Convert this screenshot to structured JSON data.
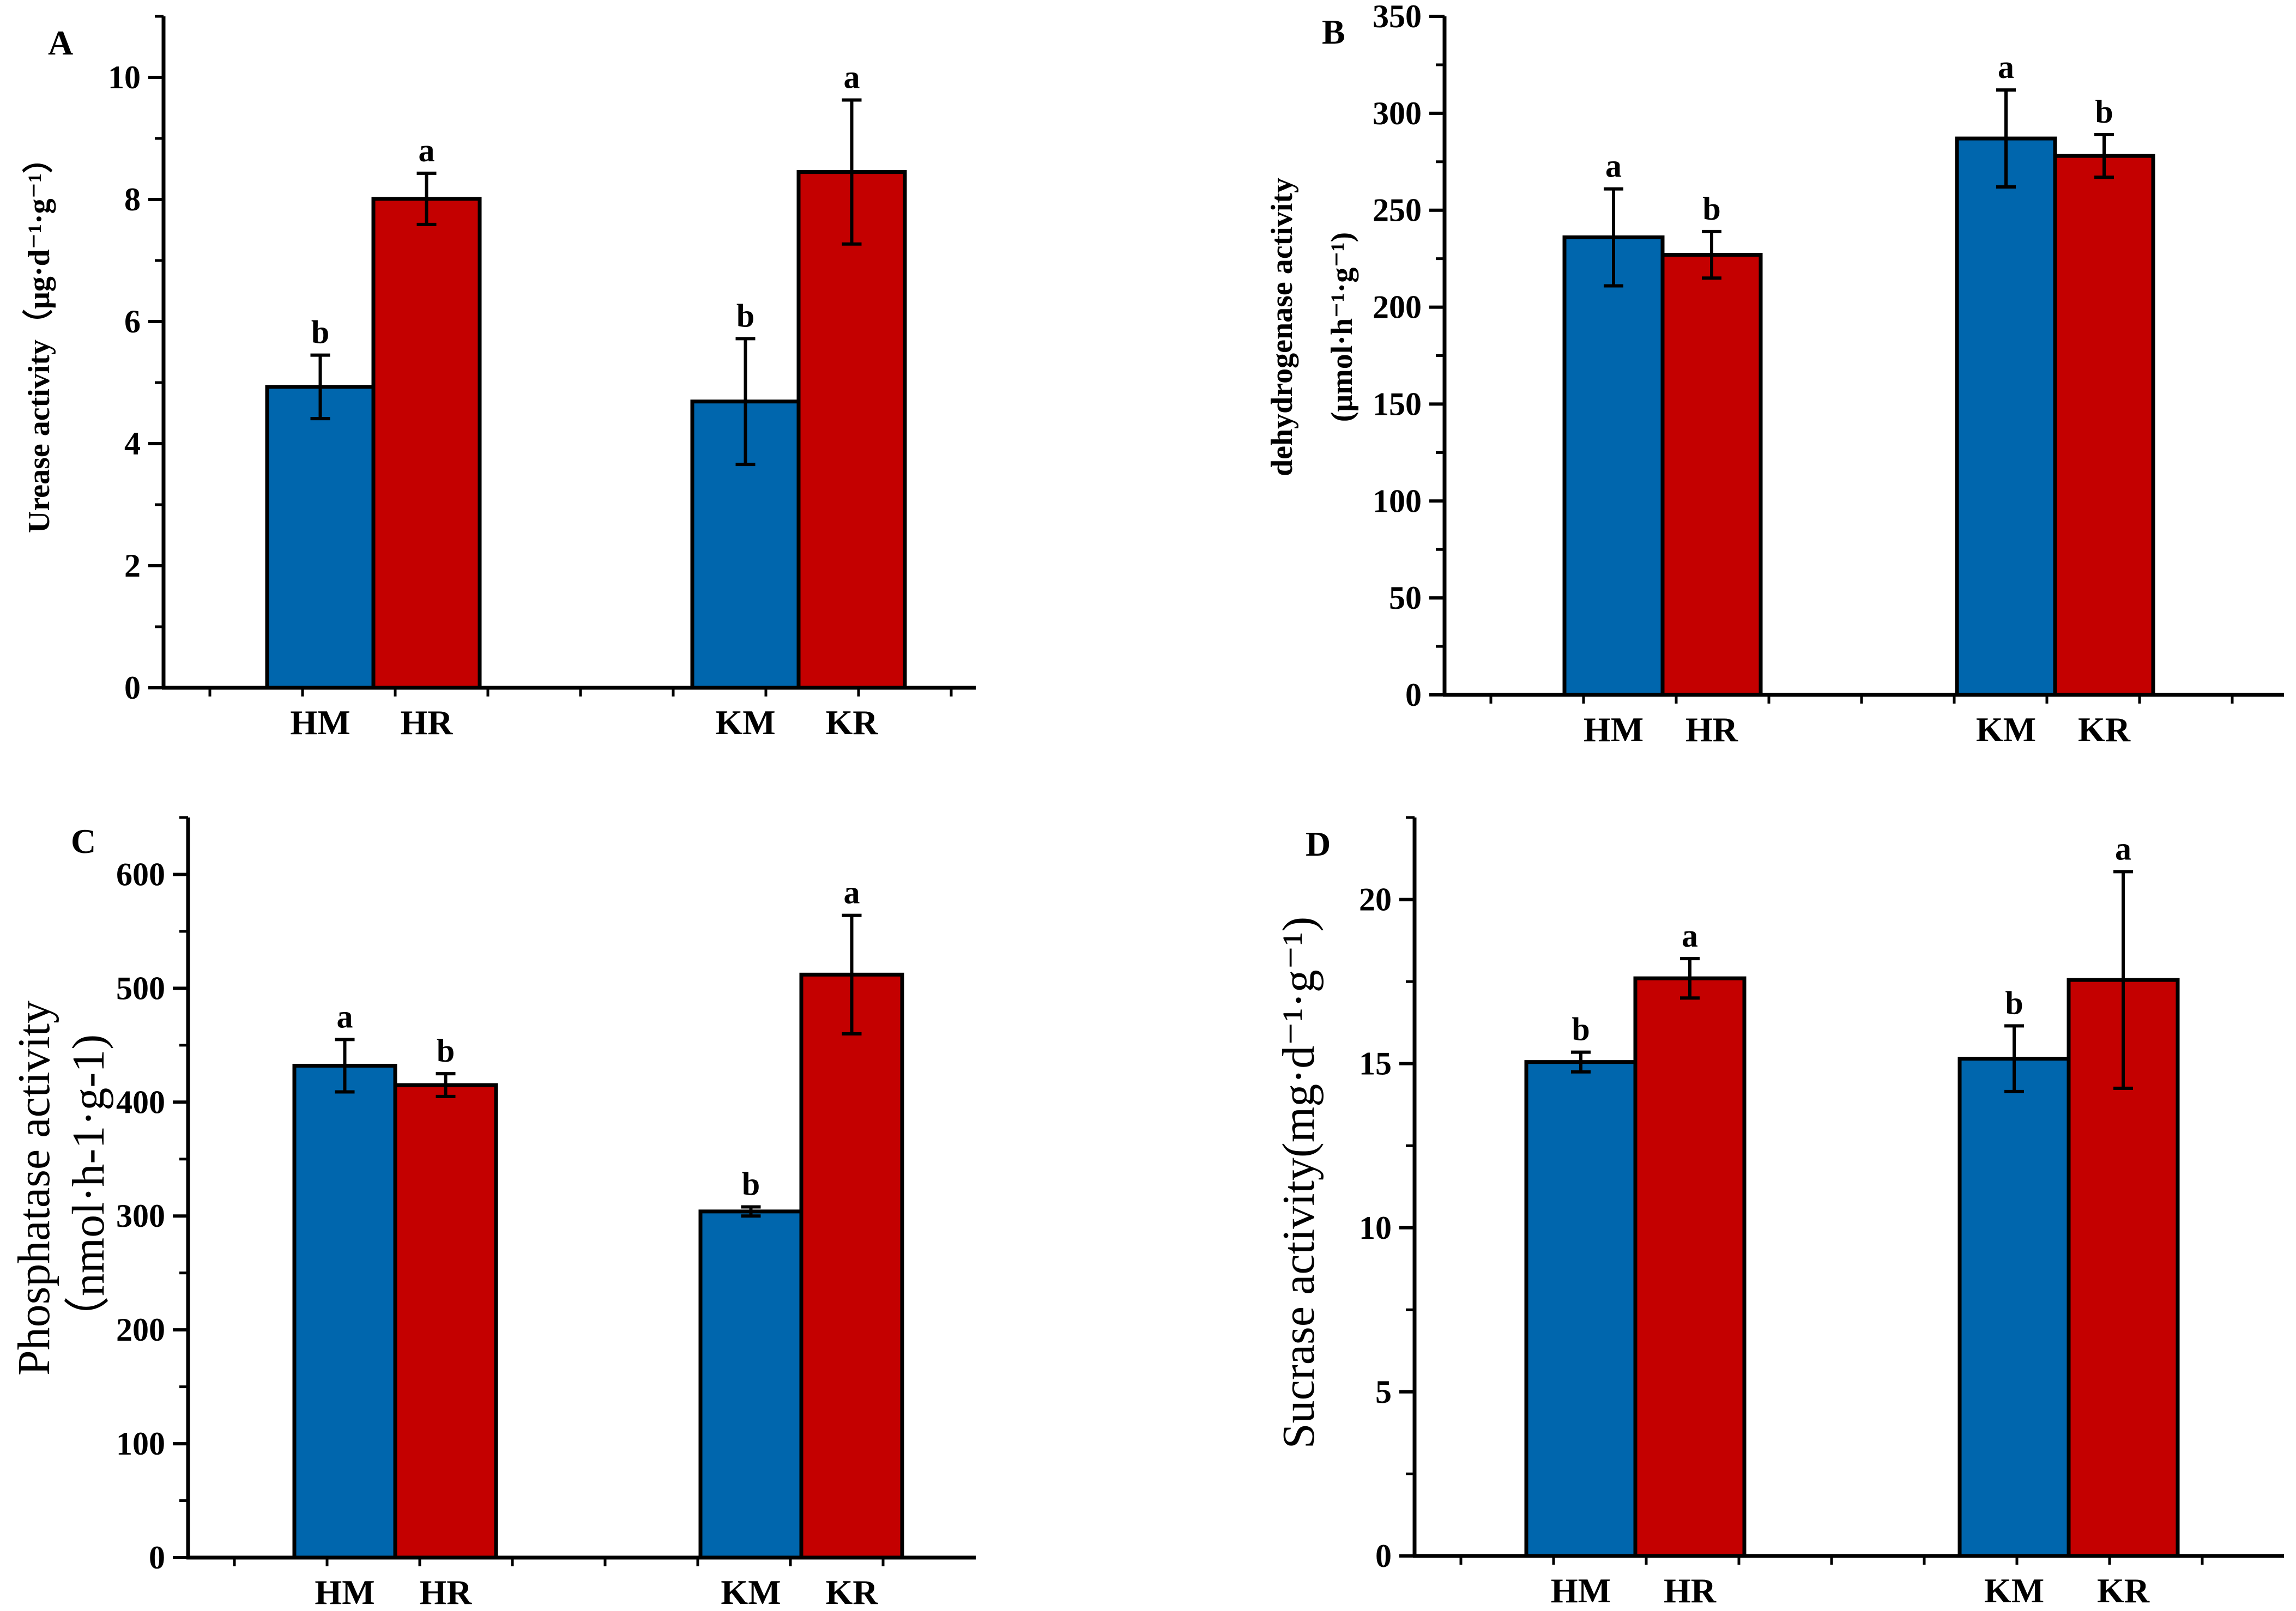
{
  "chart_data": [
    {
      "panel": "A",
      "type": "bar",
      "ylabel_lines": [
        "Urease activity（μg·d⁻¹·g⁻¹）"
      ],
      "ylim": [
        0,
        11
      ],
      "ticks": [
        0,
        2,
        4,
        6,
        8,
        10
      ],
      "groups": [
        {
          "bars": [
            {
              "label": "HM",
              "value": 4.93,
              "err": 0.52,
              "sig": "b",
              "color": "#0066ad"
            },
            {
              "label": "HR",
              "value": 8.01,
              "err": 0.42,
              "sig": "a",
              "color": "#c40000"
            }
          ]
        },
        {
          "bars": [
            {
              "label": "KM",
              "value": 4.69,
              "err": 1.03,
              "sig": "b",
              "color": "#0066ad"
            },
            {
              "label": "KR",
              "value": 8.45,
              "err": 1.18,
              "sig": "a",
              "color": "#c40000"
            }
          ]
        }
      ]
    },
    {
      "panel": "B",
      "type": "bar",
      "ylabel_lines": [
        "dehydrogenase activity",
        "(μmol·h⁻¹·g⁻¹)"
      ],
      "ylim": [
        0,
        350
      ],
      "ticks": [
        0,
        50,
        100,
        150,
        200,
        250,
        300,
        350
      ],
      "groups": [
        {
          "bars": [
            {
              "label": "HM",
              "value": 236,
              "err": 25,
              "sig": "a",
              "color": "#0066ad"
            },
            {
              "label": "HR",
              "value": 227,
              "err": 12,
              "sig": "b",
              "color": "#c40000"
            }
          ]
        },
        {
          "bars": [
            {
              "label": "KM",
              "value": 287,
              "err": 25,
              "sig": "a",
              "color": "#0066ad"
            },
            {
              "label": "KR",
              "value": 278,
              "err": 11,
              "sig": "b",
              "color": "#c40000"
            }
          ]
        }
      ]
    },
    {
      "panel": "C",
      "type": "bar",
      "ylabel_lines": [
        "Phosphatase activity",
        "（nmol·h-1·g-1)"
      ],
      "ylim": [
        0,
        650
      ],
      "ticks": [
        0,
        100,
        200,
        300,
        400,
        500,
        600
      ],
      "groups": [
        {
          "bars": [
            {
              "label": "HM",
              "value": 432,
              "err": 23,
              "sig": "a",
              "color": "#0066ad"
            },
            {
              "label": "HR",
              "value": 415,
              "err": 10,
              "sig": "b",
              "color": "#c40000"
            }
          ]
        },
        {
          "bars": [
            {
              "label": "KM",
              "value": 304,
              "err": 4,
              "sig": "b",
              "color": "#0066ad"
            },
            {
              "label": "KR",
              "value": 512,
              "err": 52,
              "sig": "a",
              "color": "#c40000"
            }
          ]
        }
      ]
    },
    {
      "panel": "D",
      "type": "bar",
      "ylabel_lines": [
        "Sucrase activity(mg·d⁻¹·g⁻¹)"
      ],
      "ylim": [
        0,
        22.5
      ],
      "ticks": [
        0,
        5,
        10,
        15,
        20
      ],
      "groups": [
        {
          "bars": [
            {
              "label": "HM",
              "value": 15.05,
              "err": 0.3,
              "sig": "b",
              "color": "#0066ad"
            },
            {
              "label": "HR",
              "value": 17.6,
              "err": 0.6,
              "sig": "a",
              "color": "#c40000"
            }
          ]
        },
        {
          "bars": [
            {
              "label": "KM",
              "value": 15.15,
              "err": 1.0,
              "sig": "b",
              "color": "#0066ad"
            },
            {
              "label": "KR",
              "value": 17.55,
              "err": 3.3,
              "sig": "a",
              "color": "#c40000"
            }
          ]
        }
      ]
    }
  ]
}
